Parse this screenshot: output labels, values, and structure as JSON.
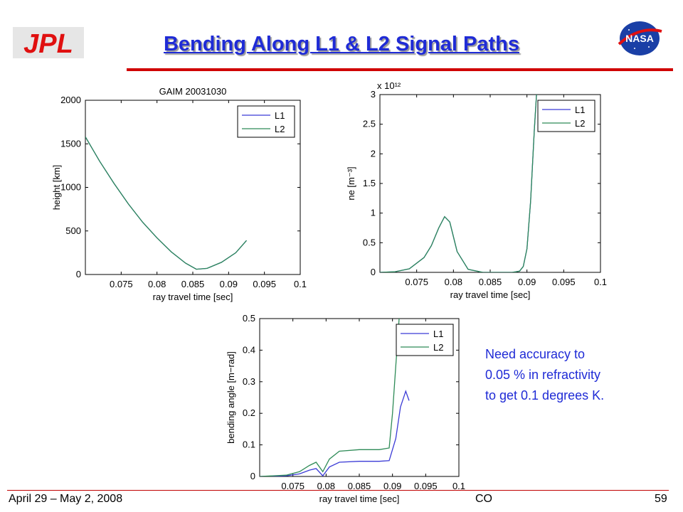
{
  "slide": {
    "title": "Bending Along L1 & L2 Signal Paths",
    "title_color": "#1f2bd6",
    "accent_color": "#d00000",
    "logo_left": "JPL",
    "logo_right": "NASA",
    "note_lines": [
      "Need accuracy to",
      "0.05 % in refractivity",
      "to get 0.1 degrees K."
    ],
    "footer_left": "April 29 – May 2, 2008",
    "footer_mid": "CO",
    "page_number": "59"
  },
  "chart_data": [
    {
      "type": "line",
      "title": "GAIM 20031030",
      "xlabel": "ray travel time [sec]",
      "ylabel": "height [km]",
      "xlim": [
        0.07,
        0.1
      ],
      "ylim": [
        0,
        2000
      ],
      "xticks": [
        0.075,
        0.08,
        0.085,
        0.09,
        0.095,
        0.1
      ],
      "xtick_labels": [
        "0.075",
        "0.08",
        "0.085",
        "0.09",
        "0.095",
        "0.1"
      ],
      "yticks": [
        0,
        500,
        1000,
        1500,
        2000
      ],
      "ytick_labels": [
        "0",
        "500",
        "1000",
        "1500",
        "2000"
      ],
      "legend": [
        "L1",
        "L2"
      ],
      "legend_position": "top-right",
      "series": [
        {
          "name": "L1",
          "color": "#3b3bd6",
          "x": [
            0.07,
            0.072,
            0.074,
            0.076,
            0.078,
            0.08,
            0.082,
            0.084,
            0.0855,
            0.087,
            0.089,
            0.091,
            0.0925
          ],
          "y": [
            1580,
            1300,
            1045,
            810,
            600,
            420,
            260,
            130,
            60,
            70,
            140,
            250,
            390
          ]
        },
        {
          "name": "L2",
          "color": "#2e8b57",
          "x": [
            0.07,
            0.072,
            0.074,
            0.076,
            0.078,
            0.08,
            0.082,
            0.084,
            0.0855,
            0.087,
            0.089,
            0.091,
            0.0925
          ],
          "y": [
            1580,
            1300,
            1045,
            810,
            600,
            420,
            260,
            130,
            60,
            70,
            140,
            250,
            390
          ]
        }
      ]
    },
    {
      "type": "line",
      "title": "",
      "xlabel": "ray travel time [sec]",
      "ylabel": "ne [m⁻³]",
      "y_multiplier": "x 10¹²",
      "xlim": [
        0.07,
        0.1
      ],
      "ylim": [
        0,
        3
      ],
      "xticks": [
        0.075,
        0.08,
        0.085,
        0.09,
        0.095,
        0.1
      ],
      "xtick_labels": [
        "0.075",
        "0.08",
        "0.085",
        "0.09",
        "0.095",
        "0.1"
      ],
      "yticks": [
        0,
        0.5,
        1,
        1.5,
        2,
        2.5,
        3
      ],
      "ytick_labels": [
        "0",
        "0.5",
        "1",
        "1.5",
        "2",
        "2.5",
        "3"
      ],
      "legend": [
        "L1",
        "L2"
      ],
      "legend_position": "top-right",
      "series": [
        {
          "name": "L1",
          "color": "#3b3bd6",
          "x": [
            0.07,
            0.072,
            0.074,
            0.076,
            0.077,
            0.078,
            0.0788,
            0.0795,
            0.0805,
            0.082,
            0.084,
            0.086,
            0.088,
            0.089,
            0.0895,
            0.09,
            0.0905,
            0.091,
            0.0913
          ],
          "y": [
            0,
            0.01,
            0.06,
            0.25,
            0.45,
            0.75,
            0.94,
            0.85,
            0.35,
            0.05,
            0.0,
            0.0,
            0.0,
            0.02,
            0.1,
            0.4,
            1.2,
            2.4,
            3.0
          ]
        },
        {
          "name": "L2",
          "color": "#2e8b57",
          "x": [
            0.07,
            0.072,
            0.074,
            0.076,
            0.077,
            0.078,
            0.0788,
            0.0795,
            0.0805,
            0.082,
            0.084,
            0.086,
            0.088,
            0.089,
            0.0895,
            0.09,
            0.0905,
            0.091,
            0.0913
          ],
          "y": [
            0,
            0.01,
            0.06,
            0.25,
            0.45,
            0.75,
            0.94,
            0.85,
            0.35,
            0.05,
            0.0,
            0.0,
            0.0,
            0.02,
            0.1,
            0.4,
            1.2,
            2.4,
            3.0
          ]
        }
      ]
    },
    {
      "type": "line",
      "title": "",
      "xlabel": "ray travel time [sec]",
      "ylabel": "bending angle [m−rad]",
      "xlim": [
        0.07,
        0.1
      ],
      "ylim": [
        0,
        0.5
      ],
      "xticks": [
        0.075,
        0.08,
        0.085,
        0.09,
        0.095,
        0.1
      ],
      "xtick_labels": [
        "0.075",
        "0.08",
        "0.085",
        "0.09",
        "0.095",
        "0.1"
      ],
      "yticks": [
        0,
        0.1,
        0.2,
        0.3,
        0.4,
        0.5
      ],
      "ytick_labels": [
        "0",
        "0.1",
        "0.2",
        "0.3",
        "0.4",
        "0.5"
      ],
      "legend": [
        "L1",
        "L2"
      ],
      "legend_position": "top-right",
      "series": [
        {
          "name": "L1",
          "color": "#3b3bd6",
          "x": [
            0.07,
            0.074,
            0.076,
            0.0775,
            0.0785,
            0.0795,
            0.0805,
            0.082,
            0.085,
            0.088,
            0.0895,
            0.0905,
            0.0912,
            0.092,
            0.0925
          ],
          "y": [
            0,
            0.002,
            0.008,
            0.02,
            0.025,
            0.002,
            0.03,
            0.045,
            0.048,
            0.048,
            0.05,
            0.12,
            0.22,
            0.27,
            0.24
          ]
        },
        {
          "name": "L2",
          "color": "#2e8b57",
          "x": [
            0.07,
            0.074,
            0.076,
            0.0775,
            0.0785,
            0.0795,
            0.0805,
            0.082,
            0.085,
            0.088,
            0.0895,
            0.09,
            0.0905,
            0.091
          ],
          "y": [
            0,
            0.004,
            0.015,
            0.035,
            0.045,
            0.015,
            0.055,
            0.08,
            0.085,
            0.085,
            0.09,
            0.2,
            0.35,
            0.5
          ]
        }
      ]
    }
  ]
}
